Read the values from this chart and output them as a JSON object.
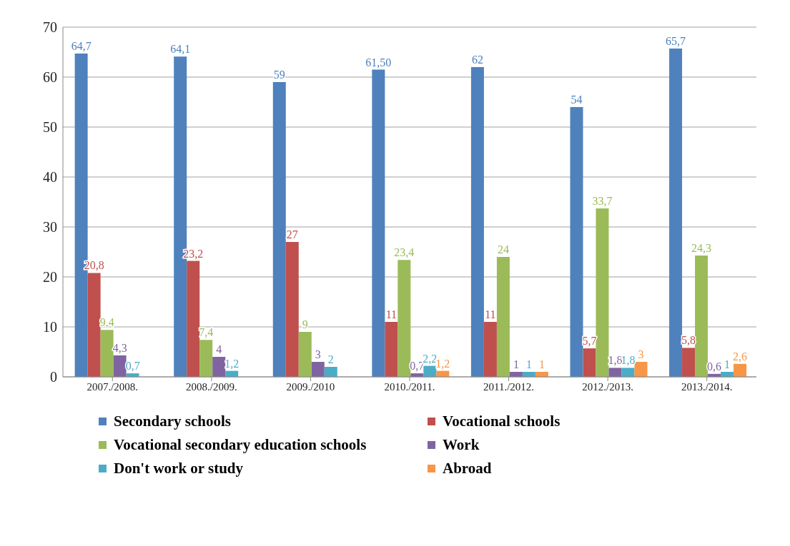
{
  "chart_data": {
    "type": "bar",
    "categories": [
      "2007./2008.",
      "2008./2009.",
      "2009./2010",
      "2010./2011.",
      "2011./2012.",
      "2012./2013.",
      "2013./2014."
    ],
    "series": [
      {
        "name": "Secondary schools",
        "color": "#4f81bd",
        "values": [
          64.7,
          64.1,
          59,
          61.5,
          62,
          54,
          65.7
        ],
        "value_labels": [
          "64,7",
          "64,1",
          "59",
          "61,50",
          "62",
          "54",
          "65,7"
        ]
      },
      {
        "name": "Vocational schools",
        "color": "#c0504d",
        "values": [
          20.8,
          23.2,
          27,
          11,
          11,
          5.7,
          5.8
        ],
        "value_labels": [
          "20,8",
          "23,2",
          "27",
          "11",
          "11",
          "5,7",
          "5,8"
        ]
      },
      {
        "name": "Vocational secondary education schools",
        "color": "#9bbb59",
        "values": [
          9.4,
          7.4,
          9,
          23.4,
          24,
          33.7,
          24.3
        ],
        "value_labels": [
          "9,4",
          "7,4",
          "9",
          "23,4",
          "24",
          "33,7",
          "24,3"
        ]
      },
      {
        "name": "Work",
        "color": "#8064a2",
        "values": [
          4.3,
          4,
          3,
          0.7,
          1,
          1.8,
          0.6
        ],
        "value_labels": [
          "4,3",
          "4",
          "3",
          "0,7",
          "1",
          "1,8",
          "0,6"
        ]
      },
      {
        "name": "Don't work or study",
        "color": "#4bacc6",
        "values": [
          0.7,
          1.2,
          2,
          2.2,
          1,
          1.8,
          1
        ],
        "value_labels": [
          "0,7",
          "1,2",
          "2",
          "2,2",
          "1",
          "1,8",
          "1"
        ]
      },
      {
        "name": "Abroad",
        "color": "#f79646",
        "values": [
          null,
          null,
          null,
          1.2,
          1,
          3,
          2.6
        ],
        "value_labels": [
          null,
          null,
          null,
          "1,2",
          "1",
          "3",
          "2,6"
        ]
      }
    ],
    "ylim": [
      0,
      70
    ],
    "yticks": [
      0,
      10,
      20,
      30,
      40,
      50,
      60,
      70
    ],
    "grid": "y",
    "legend": "bottom"
  }
}
